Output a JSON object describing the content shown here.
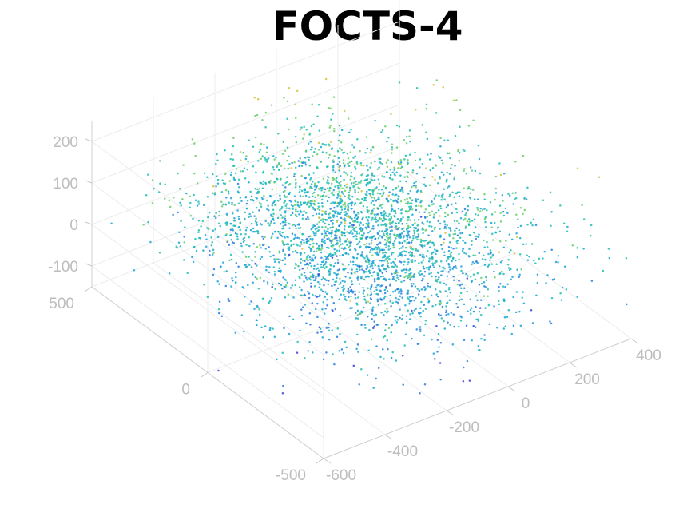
{
  "chart_data": {
    "type": "scatter",
    "title": "FOCTS-4",
    "grid": true,
    "colormap": [
      "#3b3fd9",
      "#2a7de0",
      "#1aa7d8",
      "#1fc0b0",
      "#6ccf6a",
      "#d7c23a",
      "#f5c518"
    ],
    "x_axis": {
      "range": [
        -600,
        400
      ],
      "ticks": [
        -600,
        -400,
        -200,
        0,
        200,
        400
      ],
      "tick_labels": [
        "-600",
        "-400",
        "-200",
        "0",
        "200",
        "400"
      ]
    },
    "y_axis": {
      "range": [
        -500,
        500
      ],
      "ticks": [
        -500,
        0,
        500
      ],
      "tick_labels": [
        "-500",
        "0",
        "500"
      ]
    },
    "z_axis": {
      "range": [
        -150,
        250
      ],
      "ticks": [
        -100,
        0,
        100,
        200
      ],
      "tick_labels": [
        "-100",
        "0",
        "100",
        "200"
      ]
    },
    "point_cloud": {
      "count": 3200,
      "seed": 17,
      "x_mean": -80,
      "x_sd": 200,
      "y_mean": 20,
      "y_sd": 230,
      "z_mean": 20,
      "z_sd": 55
    }
  }
}
